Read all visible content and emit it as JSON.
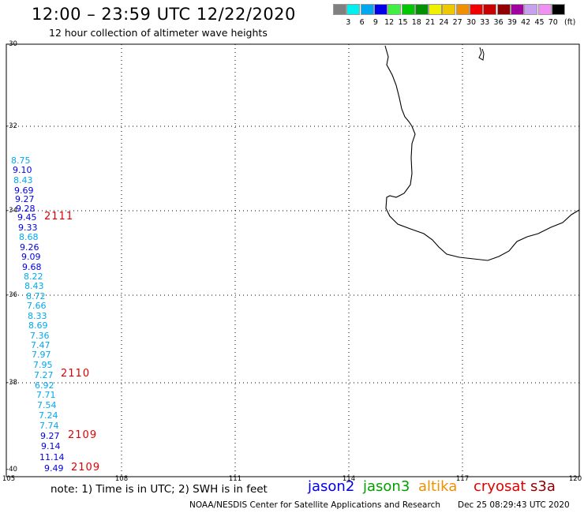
{
  "header": {
    "title": "12:00 – 23:59 UTC 12/22/2020",
    "subtitle": "12 hour collection of altimeter wave heights"
  },
  "legend": {
    "unit": "(ft)",
    "swatches": [
      {
        "color": "#808080",
        "label": ""
      },
      {
        "color": "#00f0f0",
        "label": "3"
      },
      {
        "color": "#00a8f0",
        "label": "6"
      },
      {
        "color": "#0000e8",
        "label": "9"
      },
      {
        "color": "#40f040",
        "label": "12"
      },
      {
        "color": "#00c800",
        "label": "15"
      },
      {
        "color": "#009000",
        "label": "18"
      },
      {
        "color": "#f0f000",
        "label": "21"
      },
      {
        "color": "#f0c800",
        "label": "24"
      },
      {
        "color": "#f09000",
        "label": "27"
      },
      {
        "color": "#f00000",
        "label": "30"
      },
      {
        "color": "#c80000",
        "label": "33"
      },
      {
        "color": "#900000",
        "label": "36"
      },
      {
        "color": "#a000a0",
        "label": "39"
      },
      {
        "color": "#c8a0f0",
        "label": "42"
      },
      {
        "color": "#f090f0",
        "label": "45"
      },
      {
        "color": "#000000",
        "label": "70"
      }
    ]
  },
  "map": {
    "lat_labels": [
      "-30",
      "-32",
      "-34",
      "-36",
      "-38",
      "-40"
    ],
    "lon_labels": [
      "105",
      "108",
      "111",
      "114",
      "117",
      "120"
    ],
    "wave_heights": [
      {
        "value": "8.75",
        "color": "#00a8f0"
      },
      {
        "value": "9.10",
        "color": "#0000e8"
      },
      {
        "value": "8.43",
        "color": "#00a8f0"
      },
      {
        "value": "9.69",
        "color": "#0000e8"
      },
      {
        "value": "9.27",
        "color": "#0000e8"
      },
      {
        "value": "9.28",
        "color": "#0000e8"
      },
      {
        "value": "9.45",
        "color": "#0000e8"
      },
      {
        "value": "9.33",
        "color": "#0000e8"
      },
      {
        "value": "8.68",
        "color": "#00a8f0"
      },
      {
        "value": "9.26",
        "color": "#0000e8"
      },
      {
        "value": "9.09",
        "color": "#0000e8"
      },
      {
        "value": "9.68",
        "color": "#0000e8"
      },
      {
        "value": "8.22",
        "color": "#00a8f0"
      },
      {
        "value": "8.43",
        "color": "#00a8f0"
      },
      {
        "value": "8.72",
        "color": "#00a8f0"
      },
      {
        "value": "7.66",
        "color": "#00a8f0"
      },
      {
        "value": "8.33",
        "color": "#00a8f0"
      },
      {
        "value": "8.69",
        "color": "#00a8f0"
      },
      {
        "value": "7.36",
        "color": "#00a8f0"
      },
      {
        "value": "7.47",
        "color": "#00a8f0"
      },
      {
        "value": "7.97",
        "color": "#00a8f0"
      },
      {
        "value": "7.95",
        "color": "#00a8f0"
      },
      {
        "value": "7.27",
        "color": "#00a8f0"
      },
      {
        "value": "6.92",
        "color": "#00a8f0"
      },
      {
        "value": "7.71",
        "color": "#00a8f0"
      },
      {
        "value": "7.54",
        "color": "#00a8f0"
      },
      {
        "value": "7.24",
        "color": "#00a8f0"
      },
      {
        "value": "7.74",
        "color": "#00a8f0"
      },
      {
        "value": "9.27",
        "color": "#0000e8"
      },
      {
        "value": "9.14",
        "color": "#0000e8"
      },
      {
        "value": "11.14",
        "color": "#0000e8"
      },
      {
        "value": "9.49",
        "color": "#0000e8"
      }
    ],
    "pass_times": [
      "2111",
      "2110",
      "2109",
      "2109"
    ]
  },
  "note": "note: 1) Time is in UTC; 2) SWH is in feet",
  "satellites": [
    {
      "name": "jason2",
      "color": "#0000e8"
    },
    {
      "name": "jason3",
      "color": "#00a000"
    },
    {
      "name": "altika",
      "color": "#f09000"
    },
    {
      "name": "cryosat",
      "color": "#e00000"
    },
    {
      "name": "s3a",
      "color": "#900000"
    }
  ],
  "footer": {
    "credit": "NOAA/NESDIS Center for Satellite Applications and Research",
    "timestamp": "Dec 25 08:29:43 UTC 2020"
  }
}
